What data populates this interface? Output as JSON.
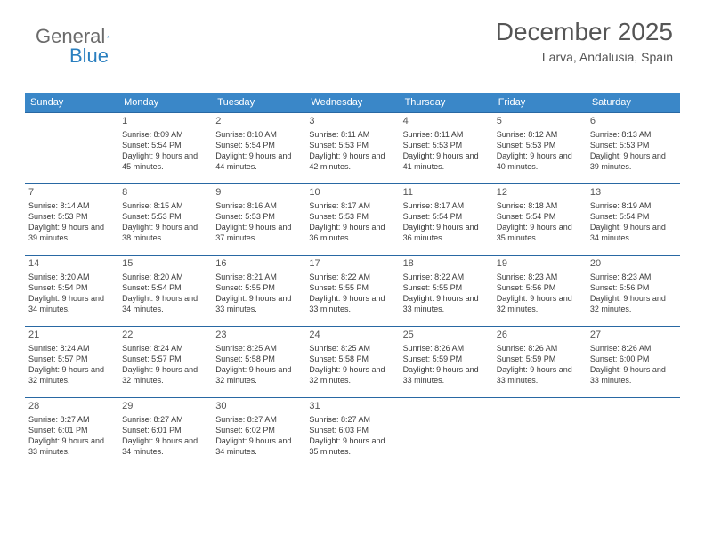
{
  "logo": {
    "textA": "General",
    "textB": "Blue"
  },
  "header": {
    "month": "December 2025",
    "location": "Larva, Andalusia, Spain"
  },
  "dayNames": [
    "Sunday",
    "Monday",
    "Tuesday",
    "Wednesday",
    "Thursday",
    "Friday",
    "Saturday"
  ],
  "colors": {
    "header_bg": "#3a87c8",
    "border": "#2968a3",
    "text": "#3a3a3a",
    "title": "#555"
  },
  "typography": {
    "title_fontsize": 28,
    "location_fontsize": 14,
    "header_fontsize": 11,
    "daynum_fontsize": 11,
    "body_fontsize": 9
  },
  "calendar": {
    "type": "table",
    "first_weekday_offset": 1,
    "days": [
      {
        "n": 1,
        "sunrise": "8:09 AM",
        "sunset": "5:54 PM",
        "dl": "9 hours and 45 minutes."
      },
      {
        "n": 2,
        "sunrise": "8:10 AM",
        "sunset": "5:54 PM",
        "dl": "9 hours and 44 minutes."
      },
      {
        "n": 3,
        "sunrise": "8:11 AM",
        "sunset": "5:53 PM",
        "dl": "9 hours and 42 minutes."
      },
      {
        "n": 4,
        "sunrise": "8:11 AM",
        "sunset": "5:53 PM",
        "dl": "9 hours and 41 minutes."
      },
      {
        "n": 5,
        "sunrise": "8:12 AM",
        "sunset": "5:53 PM",
        "dl": "9 hours and 40 minutes."
      },
      {
        "n": 6,
        "sunrise": "8:13 AM",
        "sunset": "5:53 PM",
        "dl": "9 hours and 39 minutes."
      },
      {
        "n": 7,
        "sunrise": "8:14 AM",
        "sunset": "5:53 PM",
        "dl": "9 hours and 39 minutes."
      },
      {
        "n": 8,
        "sunrise": "8:15 AM",
        "sunset": "5:53 PM",
        "dl": "9 hours and 38 minutes."
      },
      {
        "n": 9,
        "sunrise": "8:16 AM",
        "sunset": "5:53 PM",
        "dl": "9 hours and 37 minutes."
      },
      {
        "n": 10,
        "sunrise": "8:17 AM",
        "sunset": "5:53 PM",
        "dl": "9 hours and 36 minutes."
      },
      {
        "n": 11,
        "sunrise": "8:17 AM",
        "sunset": "5:54 PM",
        "dl": "9 hours and 36 minutes."
      },
      {
        "n": 12,
        "sunrise": "8:18 AM",
        "sunset": "5:54 PM",
        "dl": "9 hours and 35 minutes."
      },
      {
        "n": 13,
        "sunrise": "8:19 AM",
        "sunset": "5:54 PM",
        "dl": "9 hours and 34 minutes."
      },
      {
        "n": 14,
        "sunrise": "8:20 AM",
        "sunset": "5:54 PM",
        "dl": "9 hours and 34 minutes."
      },
      {
        "n": 15,
        "sunrise": "8:20 AM",
        "sunset": "5:54 PM",
        "dl": "9 hours and 34 minutes."
      },
      {
        "n": 16,
        "sunrise": "8:21 AM",
        "sunset": "5:55 PM",
        "dl": "9 hours and 33 minutes."
      },
      {
        "n": 17,
        "sunrise": "8:22 AM",
        "sunset": "5:55 PM",
        "dl": "9 hours and 33 minutes."
      },
      {
        "n": 18,
        "sunrise": "8:22 AM",
        "sunset": "5:55 PM",
        "dl": "9 hours and 33 minutes."
      },
      {
        "n": 19,
        "sunrise": "8:23 AM",
        "sunset": "5:56 PM",
        "dl": "9 hours and 32 minutes."
      },
      {
        "n": 20,
        "sunrise": "8:23 AM",
        "sunset": "5:56 PM",
        "dl": "9 hours and 32 minutes."
      },
      {
        "n": 21,
        "sunrise": "8:24 AM",
        "sunset": "5:57 PM",
        "dl": "9 hours and 32 minutes."
      },
      {
        "n": 22,
        "sunrise": "8:24 AM",
        "sunset": "5:57 PM",
        "dl": "9 hours and 32 minutes."
      },
      {
        "n": 23,
        "sunrise": "8:25 AM",
        "sunset": "5:58 PM",
        "dl": "9 hours and 32 minutes."
      },
      {
        "n": 24,
        "sunrise": "8:25 AM",
        "sunset": "5:58 PM",
        "dl": "9 hours and 32 minutes."
      },
      {
        "n": 25,
        "sunrise": "8:26 AM",
        "sunset": "5:59 PM",
        "dl": "9 hours and 33 minutes."
      },
      {
        "n": 26,
        "sunrise": "8:26 AM",
        "sunset": "5:59 PM",
        "dl": "9 hours and 33 minutes."
      },
      {
        "n": 27,
        "sunrise": "8:26 AM",
        "sunset": "6:00 PM",
        "dl": "9 hours and 33 minutes."
      },
      {
        "n": 28,
        "sunrise": "8:27 AM",
        "sunset": "6:01 PM",
        "dl": "9 hours and 33 minutes."
      },
      {
        "n": 29,
        "sunrise": "8:27 AM",
        "sunset": "6:01 PM",
        "dl": "9 hours and 34 minutes."
      },
      {
        "n": 30,
        "sunrise": "8:27 AM",
        "sunset": "6:02 PM",
        "dl": "9 hours and 34 minutes."
      },
      {
        "n": 31,
        "sunrise": "8:27 AM",
        "sunset": "6:03 PM",
        "dl": "9 hours and 35 minutes."
      }
    ]
  },
  "labels": {
    "sunrise": "Sunrise:",
    "sunset": "Sunset:",
    "daylight": "Daylight:"
  }
}
